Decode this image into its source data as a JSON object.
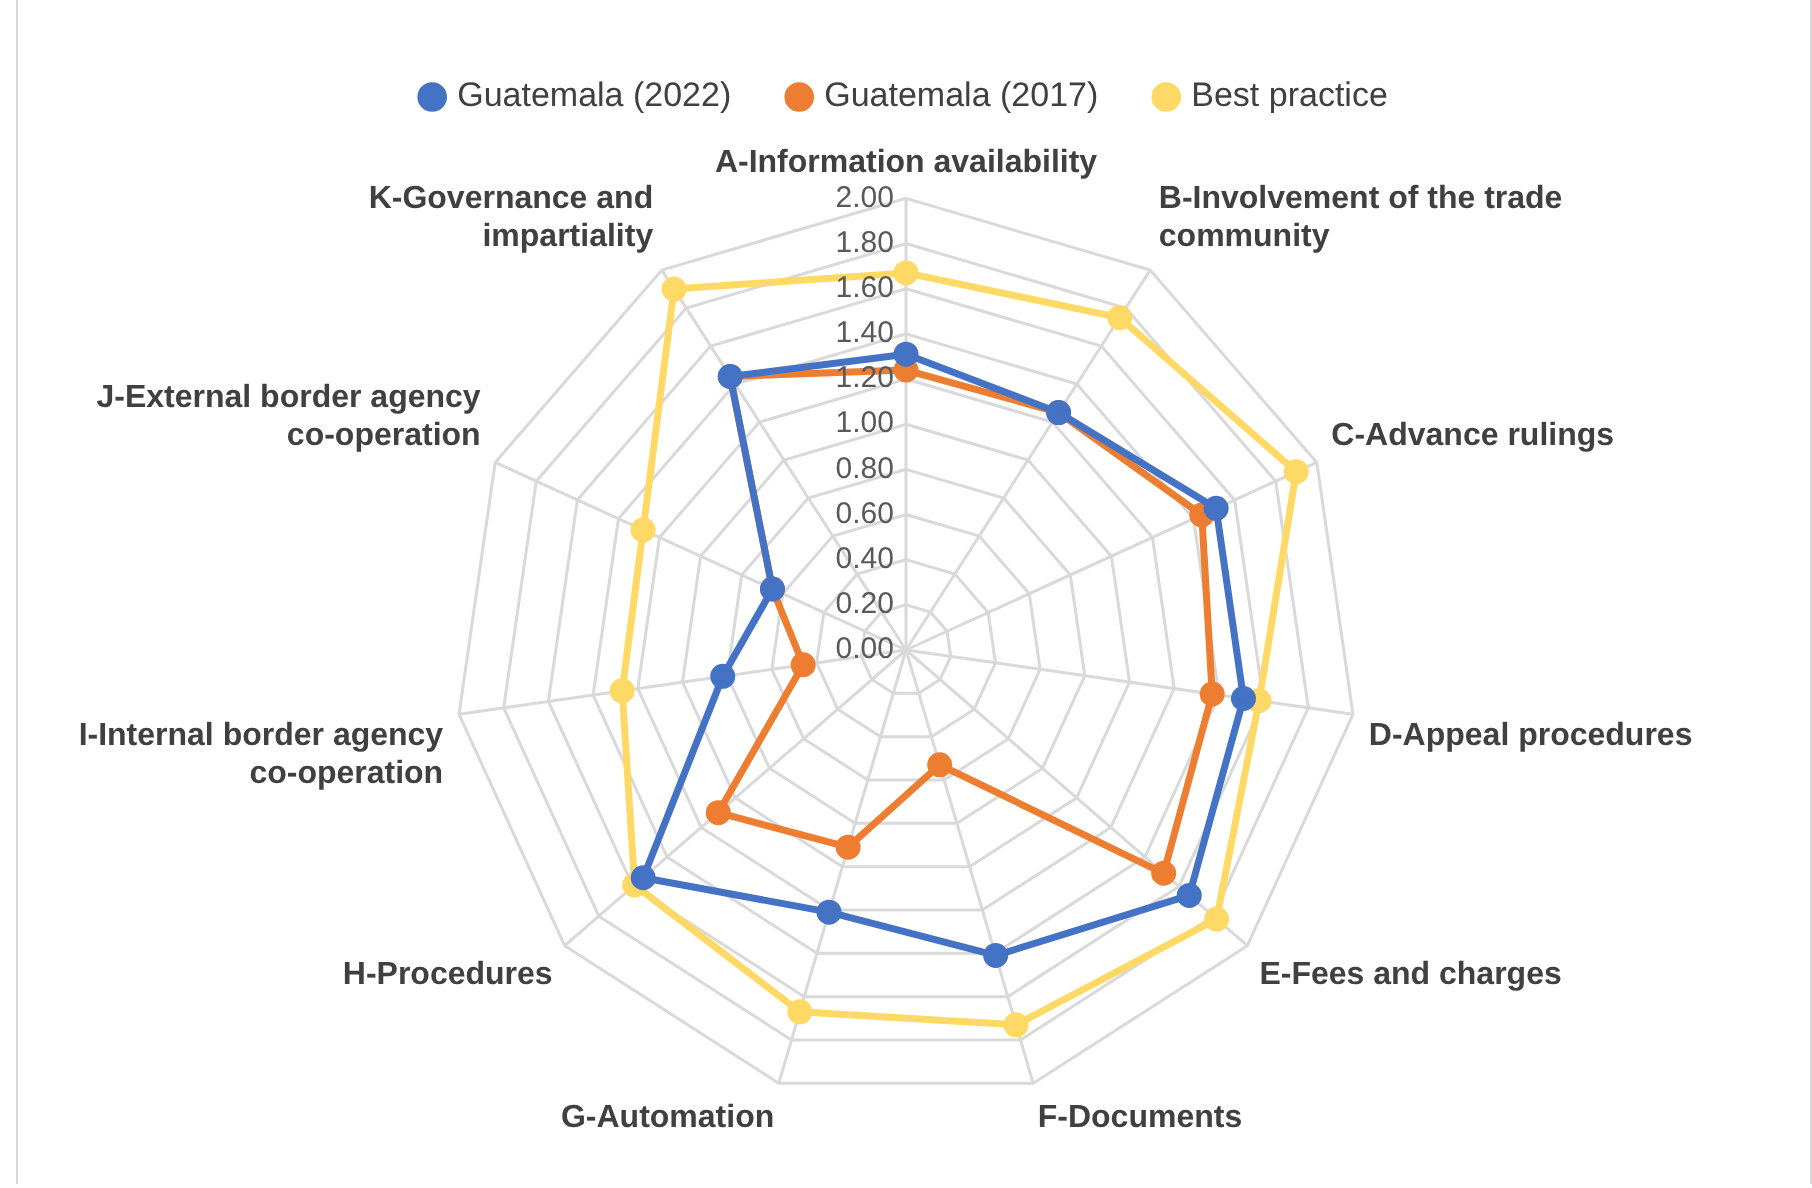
{
  "chart_data": {
    "type": "radar",
    "categories": [
      "A-Information availability",
      "B-Involvement of the trade community",
      "C-Advance rulings",
      "D-Appeal procedures",
      "E-Fees and charges",
      "F-Documents",
      "G-Automation",
      "H-Procedures",
      "I-Internal border agency co-operation",
      "J-External border agency co-operation",
      "K-Governance and impartiality"
    ],
    "series": [
      {
        "name": "Guatemala (2022)",
        "color": "#4472c4",
        "values": [
          1.31,
          1.25,
          1.51,
          1.51,
          1.66,
          1.41,
          1.21,
          1.54,
          0.82,
          0.65,
          1.44
        ]
      },
      {
        "name": "Guatemala (2017)",
        "color": "#ed7d31",
        "values": [
          1.24,
          1.25,
          1.44,
          1.37,
          1.51,
          0.53,
          0.91,
          1.1,
          0.46,
          0.65,
          1.44
        ]
      },
      {
        "name": "Best practice",
        "color": "#ffd966",
        "values": [
          1.67,
          1.75,
          1.9,
          1.58,
          1.82,
          1.73,
          1.67,
          1.59,
          1.27,
          1.28,
          1.9
        ]
      }
    ],
    "ylim": [
      0,
      2
    ],
    "yticks": [
      {
        "value": 0,
        "label": "0.00"
      },
      {
        "value": 0.2,
        "label": "0.20"
      },
      {
        "value": 0.4,
        "label": "0.40"
      },
      {
        "value": 0.6,
        "label": "0.60"
      },
      {
        "value": 0.8,
        "label": "0.80"
      },
      {
        "value": 1,
        "label": "1.00"
      },
      {
        "value": 1.2,
        "label": "1.20"
      },
      {
        "value": 1.4,
        "label": "1.40"
      },
      {
        "value": 1.6,
        "label": "1.60"
      },
      {
        "value": 1.8,
        "label": "1.80"
      },
      {
        "value": 2,
        "label": "2.00"
      }
    ],
    "grid": true,
    "legend": "top",
    "marker": "circle",
    "line_style": "solid"
  }
}
